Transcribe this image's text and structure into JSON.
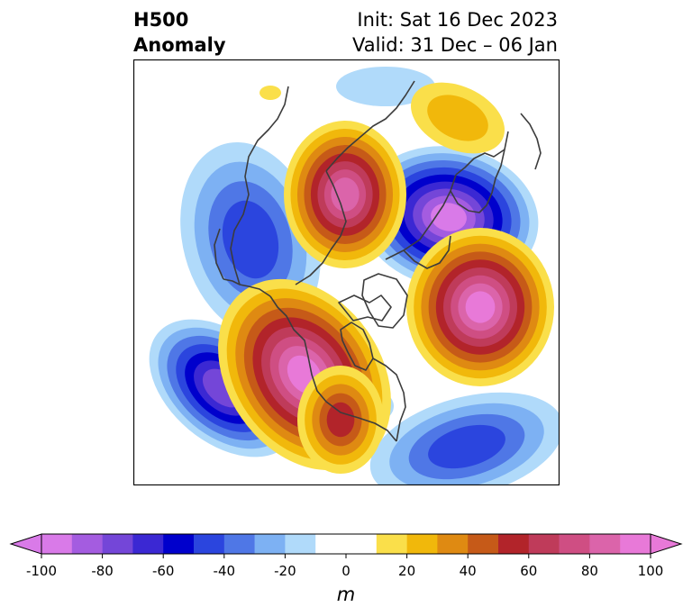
{
  "title": {
    "left_line1": "H500",
    "left_line2": "Anomaly",
    "right_line1": "Init: Sat 16 Dec 2023",
    "right_line2": "Valid: 31 Dec – 06 Jan"
  },
  "colorbar": {
    "label": "m",
    "ticks": [
      "-100",
      "-80",
      "-60",
      "-40",
      "-20",
      "0",
      "20",
      "40",
      "60",
      "80",
      "100"
    ],
    "colors": [
      "#d97ae8",
      "#a45ce0",
      "#7446d8",
      "#3b28d3",
      "#0000cc",
      "#2b45de",
      "#4f77e6",
      "#7db1f3",
      "#b0dafa",
      "#ffffff",
      "#ffffff",
      "#fadf4a",
      "#f1b80b",
      "#df8a12",
      "#c65a18",
      "#b2242a",
      "#bf3b5a",
      "#cf4e83",
      "#db64aa",
      "#e879d8"
    ],
    "over_color": "#e879d8",
    "under_color": "#d97ae8"
  },
  "colors": {
    "coastline": "#3c3c3c",
    "frame": "#000000"
  }
}
